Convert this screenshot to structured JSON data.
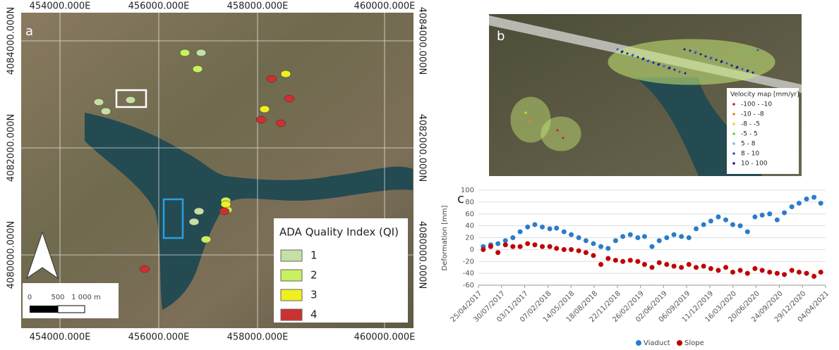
{
  "map_a": {
    "label": "a",
    "x_coords": [
      "454000.000E",
      "456000.000E",
      "458000.000E",
      "460000.000E"
    ],
    "y_coords": [
      "4084000.000N",
      "4082000.000N",
      "4080000.000N"
    ],
    "legend": {
      "title": "ADA Quality Index (QI)",
      "items": [
        {
          "label": "1",
          "color": "#c5e0a5"
        },
        {
          "label": "2",
          "color": "#c8f060"
        },
        {
          "label": "3",
          "color": "#f0f020"
        },
        {
          "label": "4",
          "color": "#cc3030"
        }
      ]
    },
    "scale": [
      "0",
      "500",
      "1 000 m"
    ]
  },
  "map_b": {
    "label": "b",
    "legend": {
      "title": "Velocity map [mm/yr]",
      "items": [
        {
          "label": "-100 - -10",
          "color": "#d62020"
        },
        {
          "label": "-10 - -8",
          "color": "#f08020"
        },
        {
          "label": "-8 - -5",
          "color": "#f0d020"
        },
        {
          "label": "-5 - 5",
          "color": "#60d030"
        },
        {
          "label": "5 - 8",
          "color": "#60c0e0"
        },
        {
          "label": "8 - 10",
          "color": "#3050e0"
        },
        {
          "label": "10 - 100",
          "color": "#102090"
        }
      ]
    }
  },
  "chart_data": {
    "type": "scatter",
    "label": "c",
    "y_label": "Deformation [mm]",
    "x": [
      "2017-05-15",
      "2017-06-15",
      "2017-07-15",
      "2017-08-15",
      "2017-09-15",
      "2017-10-15",
      "2017-11-15",
      "2017-12-15",
      "2018-01-15",
      "2018-02-15",
      "2018-03-15",
      "2018-04-15",
      "2018-05-15",
      "2018-06-15",
      "2018-07-15",
      "2018-08-15",
      "2018-09-15",
      "2018-10-15",
      "2018-11-15",
      "2018-12-15",
      "2019-01-15",
      "2019-02-15",
      "2019-03-15",
      "2019-04-15",
      "2019-05-15",
      "2019-06-15",
      "2019-07-15",
      "2019-08-15",
      "2019-09-15",
      "2019-10-15",
      "2019-11-15",
      "2019-12-15",
      "2020-01-15",
      "2020-02-15",
      "2020-03-15",
      "2020-04-15",
      "2020-05-15",
      "2020-06-15",
      "2020-07-15",
      "2020-08-15",
      "2020-09-15",
      "2020-10-15",
      "2020-11-15",
      "2020-12-15",
      "2021-01-15",
      "2021-02-15",
      "2021-03-15"
    ],
    "series": [
      {
        "name": "Viaduct",
        "color": "#2a7ccc",
        "values": [
          5,
          8,
          10,
          15,
          20,
          30,
          38,
          42,
          38,
          35,
          36,
          30,
          25,
          20,
          15,
          10,
          5,
          2,
          15,
          22,
          25,
          20,
          22,
          5,
          15,
          20,
          25,
          22,
          20,
          35,
          42,
          48,
          55,
          50,
          42,
          40,
          30,
          55,
          58,
          60,
          50,
          62,
          72,
          78,
          85,
          88,
          78
        ]
      },
      {
        "name": "Slope",
        "color": "#c00000",
        "values": [
          0,
          5,
          -5,
          8,
          5,
          5,
          10,
          8,
          5,
          5,
          2,
          0,
          0,
          -2,
          -5,
          -10,
          -25,
          -15,
          -18,
          -20,
          -18,
          -20,
          -25,
          -30,
          -22,
          -25,
          -28,
          -30,
          -25,
          -30,
          -28,
          -32,
          -35,
          -30,
          -38,
          -35,
          -40,
          -32,
          -35,
          -38,
          -40,
          -42,
          -35,
          -38,
          -40,
          -45,
          -38
        ]
      }
    ],
    "xlim": [
      "2017-04-25",
      "2021-04-04"
    ],
    "xticks": [
      {
        "value": "2017-04-25",
        "label": "25/04/2017"
      },
      {
        "value": "2017-07-30",
        "label": "30/07/2017"
      },
      {
        "value": "2017-11-03",
        "label": "03/11/2017"
      },
      {
        "value": "2018-02-07",
        "label": "07/02/2018"
      },
      {
        "value": "2018-05-14",
        "label": "14/05/2018"
      },
      {
        "value": "2018-08-18",
        "label": "18/08/2018"
      },
      {
        "value": "2018-11-22",
        "label": "22/11/2018"
      },
      {
        "value": "2019-02-26",
        "label": "26/02/2019"
      },
      {
        "value": "2019-06-02",
        "label": "02/06/2019"
      },
      {
        "value": "2019-09-06",
        "label": "06/09/2019"
      },
      {
        "value": "2019-12-11",
        "label": "11/12/2019"
      },
      {
        "value": "2020-03-16",
        "label": "16/03/2020"
      },
      {
        "value": "2020-06-20",
        "label": "20/06/2020"
      },
      {
        "value": "2020-09-24",
        "label": "24/09/2020"
      },
      {
        "value": "2020-12-29",
        "label": "29/12/2020"
      },
      {
        "value": "2021-04-04",
        "label": "04/04/2021"
      }
    ],
    "ylim": [
      -60,
      100
    ],
    "yticks": [
      -60,
      -40,
      -20,
      0,
      20,
      40,
      60,
      80,
      100
    ],
    "grid": true
  }
}
